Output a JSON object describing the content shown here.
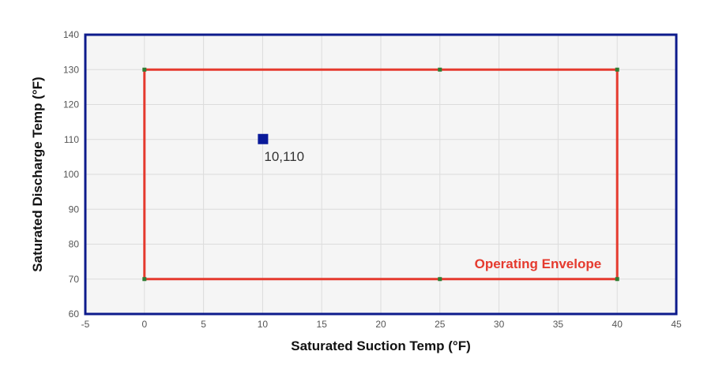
{
  "chart_data": {
    "type": "scatter",
    "xlabel": "Saturated Suction Temp (°F)",
    "ylabel": "Saturated Discharge Temp (°F)",
    "xlim": [
      -5,
      45
    ],
    "ylim": [
      60,
      140
    ],
    "x_ticks": [
      -5,
      0,
      5,
      10,
      15,
      20,
      25,
      30,
      35,
      40,
      45
    ],
    "y_ticks": [
      60,
      70,
      80,
      90,
      100,
      110,
      120,
      130,
      140
    ],
    "x_tick_labels": [
      "-5",
      "0",
      "5",
      "10",
      "15",
      "20",
      "25",
      "30",
      "35",
      "40",
      "45"
    ],
    "y_tick_labels": [
      "60",
      "70",
      "80",
      "90",
      "100",
      "110",
      "120",
      "130",
      "140"
    ],
    "grid": true,
    "envelope": {
      "label": "Operating Envelope",
      "color": "#e53a2e",
      "vertex_color": "#2e7d32",
      "polygon": [
        {
          "x": 0,
          "y": 70
        },
        {
          "x": 0,
          "y": 130
        },
        {
          "x": 40,
          "y": 130
        },
        {
          "x": 40,
          "y": 70
        }
      ],
      "vertices": [
        {
          "x": 0,
          "y": 130
        },
        {
          "x": 25,
          "y": 130
        },
        {
          "x": 40,
          "y": 130
        },
        {
          "x": 0,
          "y": 70
        },
        {
          "x": 25,
          "y": 70
        },
        {
          "x": 40,
          "y": 70
        }
      ]
    },
    "points": [
      {
        "x": 10,
        "y": 110,
        "label": "10,110",
        "color": "#0a1a9a"
      }
    ],
    "colors": {
      "plot_background": "#f5f5f5",
      "plot_border": "#0d1b8c",
      "grid": "#dcdcdc"
    }
  }
}
